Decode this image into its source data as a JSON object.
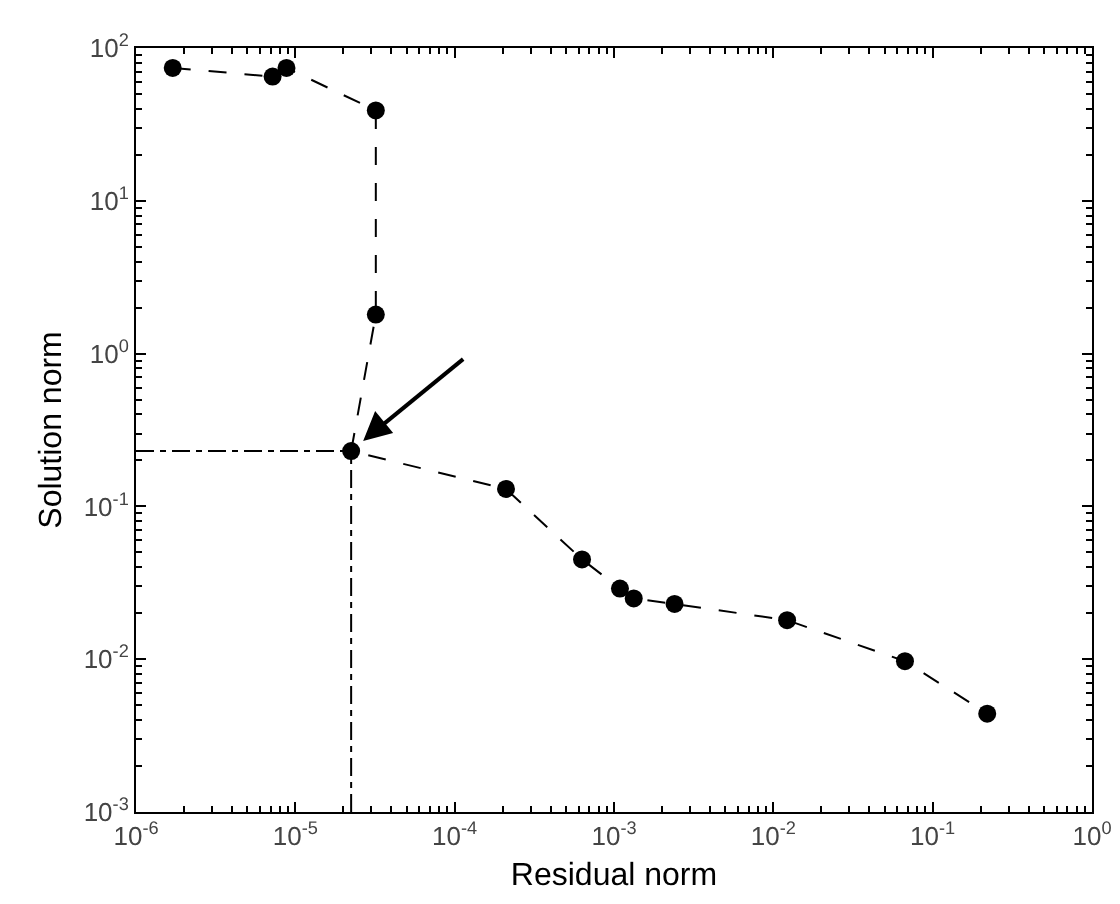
{
  "chart_data": {
    "type": "line",
    "xlabel": "Residual norm",
    "ylabel": "Solution norm",
    "log": "xy",
    "marker": "circle",
    "line_style": "dashed",
    "x": [
      1.7e-06,
      7.2e-06,
      8.8e-06,
      3.2e-05,
      3.2e-05,
      2.24e-05,
      0.00021,
      0.00063,
      0.00109,
      0.00133,
      0.0024,
      0.0122,
      0.067,
      0.22
    ],
    "series": [
      {
        "color": "#000000",
        "values": [
          74,
          65,
          74,
          39,
          1.8,
          0.23,
          0.13,
          0.045,
          0.029,
          0.025,
          0.023,
          0.018,
          0.0097,
          0.0044
        ]
      }
    ],
    "xlim": [
      1e-06,
      1
    ],
    "xticks": [
      {
        "value": 1e-06,
        "label": "10$^{-6}$"
      },
      {
        "value": 1e-05,
        "label": "10$^{-5}$"
      },
      {
        "value": 0.0001,
        "label": "10$^{-4}$"
      },
      {
        "value": 0.001,
        "label": "10$^{-3}$"
      },
      {
        "value": 0.01,
        "label": "10$^{-2}$"
      },
      {
        "value": 0.1,
        "label": "10$^{-1}$"
      },
      {
        "value": 1,
        "label": "10$^{0}$"
      }
    ],
    "ylim": [
      0.001,
      100
    ],
    "yticks": [
      {
        "value": 0.001,
        "label": "10$^{-3}$"
      },
      {
        "value": 0.01,
        "label": "10$^{-2}$"
      },
      {
        "value": 0.1,
        "label": "10$^{-1}$"
      },
      {
        "value": 1,
        "label": "10$^{0}$"
      },
      {
        "value": 10,
        "label": "10$^{1}$"
      },
      {
        "value": 100,
        "label": "10$^{2}$"
      }
    ],
    "ref_lines": [
      {
        "axis": "y",
        "value": 0.23,
        "line_style": "dashdot",
        "color": "#000000"
      },
      {
        "axis": "x",
        "value": 2.24e-05,
        "line_style": "dashdot",
        "color": "#000000"
      }
    ]
  }
}
